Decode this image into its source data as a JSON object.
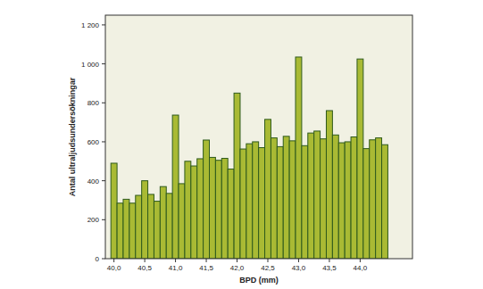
{
  "chart_data": {
    "type": "histogram",
    "x_label": "BPD (mm)",
    "y_label": "Antal ultraljudsundersökningar",
    "bins": [
      39.95,
      40.05,
      40.15,
      40.25,
      40.35,
      40.45,
      40.55,
      40.65,
      40.75,
      40.85,
      40.95,
      41.05,
      41.15,
      41.25,
      41.35,
      41.45,
      41.55,
      41.65,
      41.75,
      41.85,
      41.95,
      42.05,
      42.15,
      42.25,
      42.35,
      42.45,
      42.55,
      42.65,
      42.75,
      42.85,
      42.95,
      43.05,
      43.15,
      43.25,
      43.35,
      43.45,
      43.55,
      43.65,
      43.75,
      43.85,
      43.95,
      44.05,
      44.15,
      44.25,
      44.35,
      44.45
    ],
    "values": [
      490,
      285,
      305,
      285,
      325,
      400,
      330,
      295,
      370,
      335,
      737,
      385,
      500,
      476,
      513,
      609,
      520,
      505,
      515,
      460,
      850,
      563,
      590,
      600,
      570,
      715,
      620,
      575,
      628,
      605,
      1035,
      580,
      645,
      655,
      615,
      760,
      635,
      595,
      600,
      625,
      1025,
      565,
      610,
      620,
      585
    ],
    "color": "#a9ba34",
    "xlim": [
      39.86,
      44.85
    ],
    "ylim": [
      0,
      1250
    ],
    "xticks": [
      {
        "value": 40,
        "label": "40,0"
      },
      {
        "value": 40.5,
        "label": "40,5"
      },
      {
        "value": 41,
        "label": "41,0"
      },
      {
        "value": 41.5,
        "label": "41,5"
      },
      {
        "value": 42,
        "label": "42,0"
      },
      {
        "value": 42.5,
        "label": "42,5"
      },
      {
        "value": 43,
        "label": "43,0"
      },
      {
        "value": 43.5,
        "label": "43,5"
      },
      {
        "value": 44,
        "label": "44,0"
      }
    ],
    "yticks": [
      0,
      200,
      400,
      600,
      800,
      {
        "value": 1000,
        "label": "1 000"
      },
      {
        "value": 1200,
        "label": "1 200"
      }
    ],
    "grid": false
  }
}
